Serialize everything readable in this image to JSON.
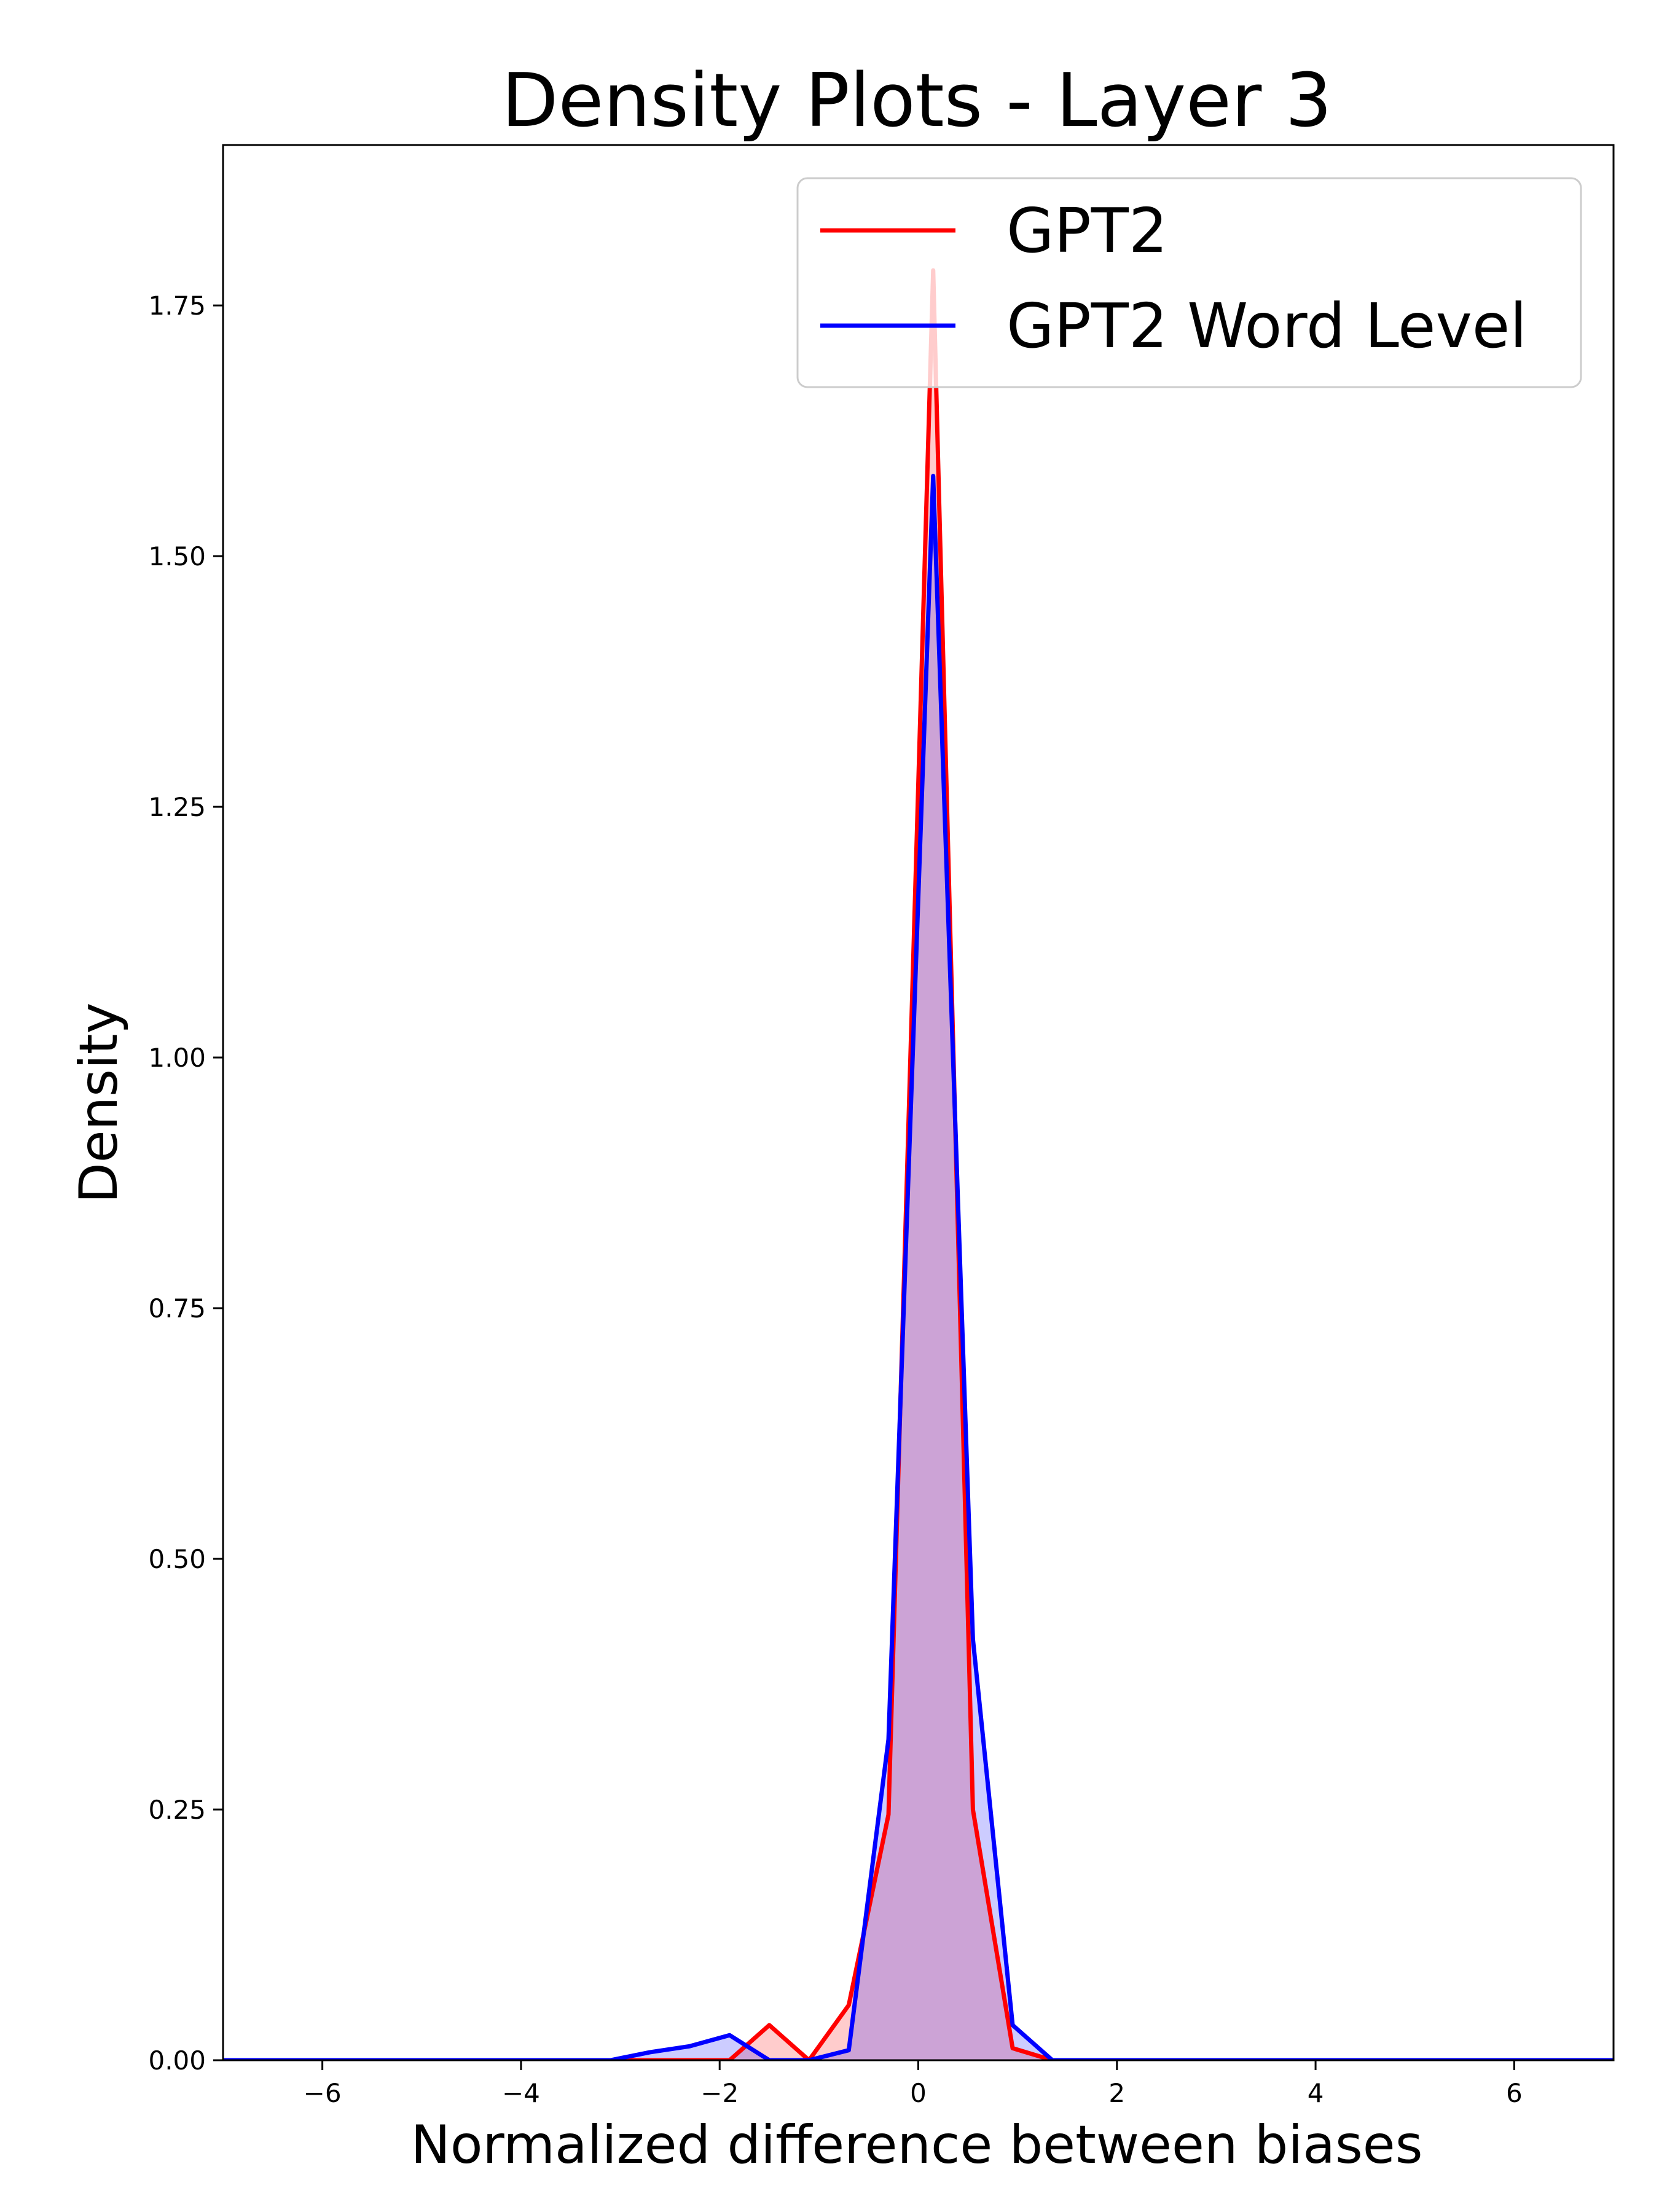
{
  "chart_data": {
    "type": "area",
    "title": "Density Plots - Layer 3",
    "xlabel": "Normalized difference between biases",
    "ylabel": "Density",
    "xlim": [
      -7,
      7
    ],
    "ylim": [
      0,
      1.91
    ],
    "xticks": [
      -6,
      -4,
      -2,
      0,
      2,
      4,
      6
    ],
    "xtick_labels": [
      "−6",
      "−4",
      "−2",
      "0",
      "2",
      "4",
      "6"
    ],
    "yticks": [
      0,
      0.25,
      0.5,
      0.75,
      1.0,
      1.25,
      1.5,
      1.75
    ],
    "ytick_labels": [
      "0.00",
      "0.25",
      "0.50",
      "0.75",
      "1.00",
      "1.25",
      "1.50",
      "1.75"
    ],
    "grid": false,
    "legend_position": "top-right",
    "series": [
      {
        "name": "GPT2",
        "color": "#ff0000",
        "fill": "#ff0000",
        "fill_opacity": 0.2,
        "x": [
          -7.0,
          -2.7,
          -2.3,
          -1.9,
          -1.5,
          -1.1,
          -0.7,
          -0.3,
          0.15,
          0.55,
          0.95,
          1.35,
          7.0
        ],
        "y": [
          0.0,
          0.0,
          0.0,
          0.0,
          0.035,
          0.0,
          0.055,
          0.245,
          1.785,
          0.25,
          0.012,
          0.0,
          0.0
        ]
      },
      {
        "name": "GPT2 Word Level",
        "color": "#0000ff",
        "fill": "#0000ff",
        "fill_opacity": 0.2,
        "x": [
          -7.0,
          -3.1,
          -2.7,
          -2.3,
          -1.9,
          -1.5,
          -1.1,
          -0.7,
          -0.3,
          0.15,
          0.55,
          0.95,
          1.35,
          7.0
        ],
        "y": [
          0.0,
          0.0,
          0.008,
          0.014,
          0.025,
          0.0,
          0.0,
          0.01,
          0.32,
          1.58,
          0.42,
          0.035,
          0.0,
          0.0
        ]
      }
    ]
  }
}
